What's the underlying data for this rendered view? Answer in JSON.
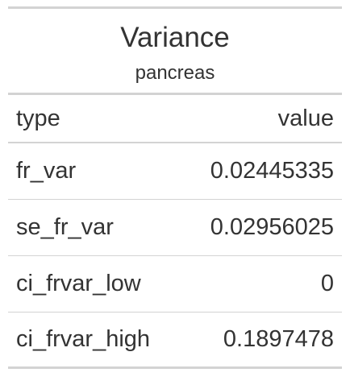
{
  "table": {
    "title": "Variance",
    "subtitle": "pancreas",
    "columns": [
      "type",
      "value"
    ],
    "rows": [
      {
        "type": "fr_var",
        "value": "0.02445335"
      },
      {
        "type": "se_fr_var",
        "value": "0.02956025"
      },
      {
        "type": "ci_frvar_low",
        "value": "0"
      },
      {
        "type": "ci_frvar_high",
        "value": "0.1897478"
      }
    ]
  },
  "colors": {
    "text": "#333333",
    "rule": "#d3d3d3",
    "background": "#ffffff"
  }
}
